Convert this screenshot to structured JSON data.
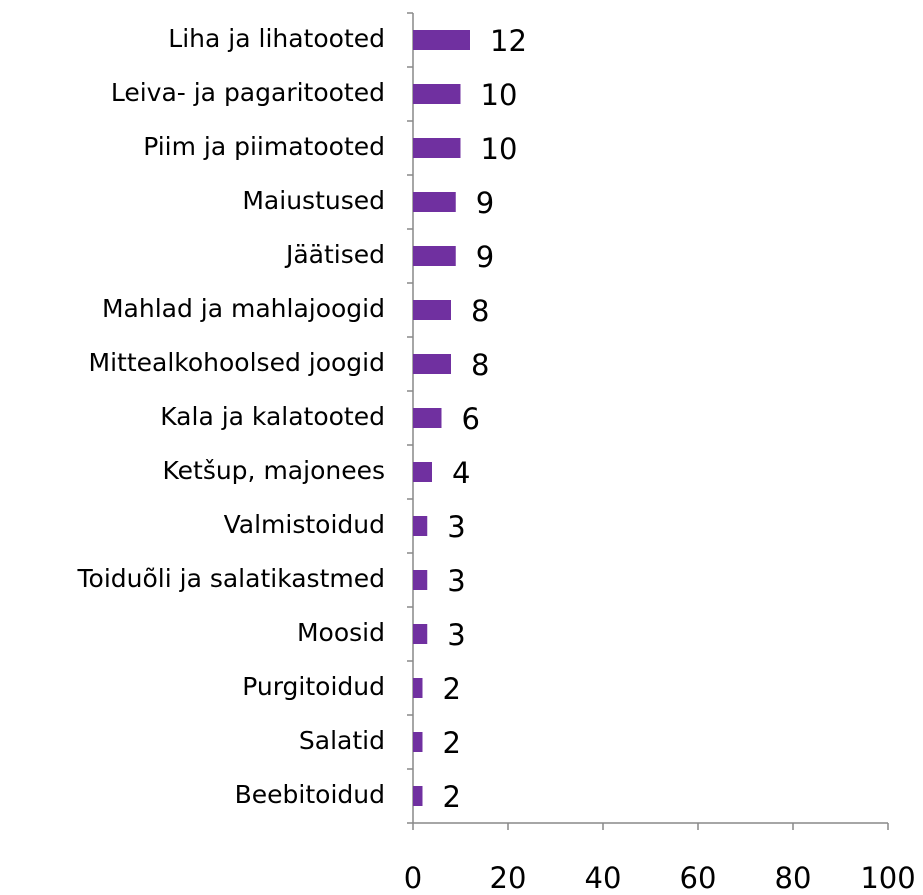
{
  "chart_data": {
    "type": "bar",
    "orientation": "horizontal",
    "categories": [
      "Liha ja lihatooted",
      "Leiva- ja pagaritooted",
      "Piim ja piimatooted",
      "Maiustused",
      "Jäätised",
      "Mahlad ja mahlajoogid",
      "Mittealkohoolsed joogid",
      "Kala ja kalatooted",
      "Ketšup, majonees",
      "Valmistoidud",
      "Toiduõli ja salatikastmed",
      "Moosid",
      "Purgitoidud",
      "Salatid",
      "Beebitoidud"
    ],
    "values": [
      12,
      10,
      10,
      9,
      9,
      8,
      8,
      6,
      4,
      3,
      3,
      3,
      2,
      2,
      2
    ],
    "color": "#7030a0",
    "xlim": [
      0,
      100
    ],
    "xticks": [
      0,
      20,
      40,
      60,
      80,
      100
    ],
    "grid": false
  }
}
